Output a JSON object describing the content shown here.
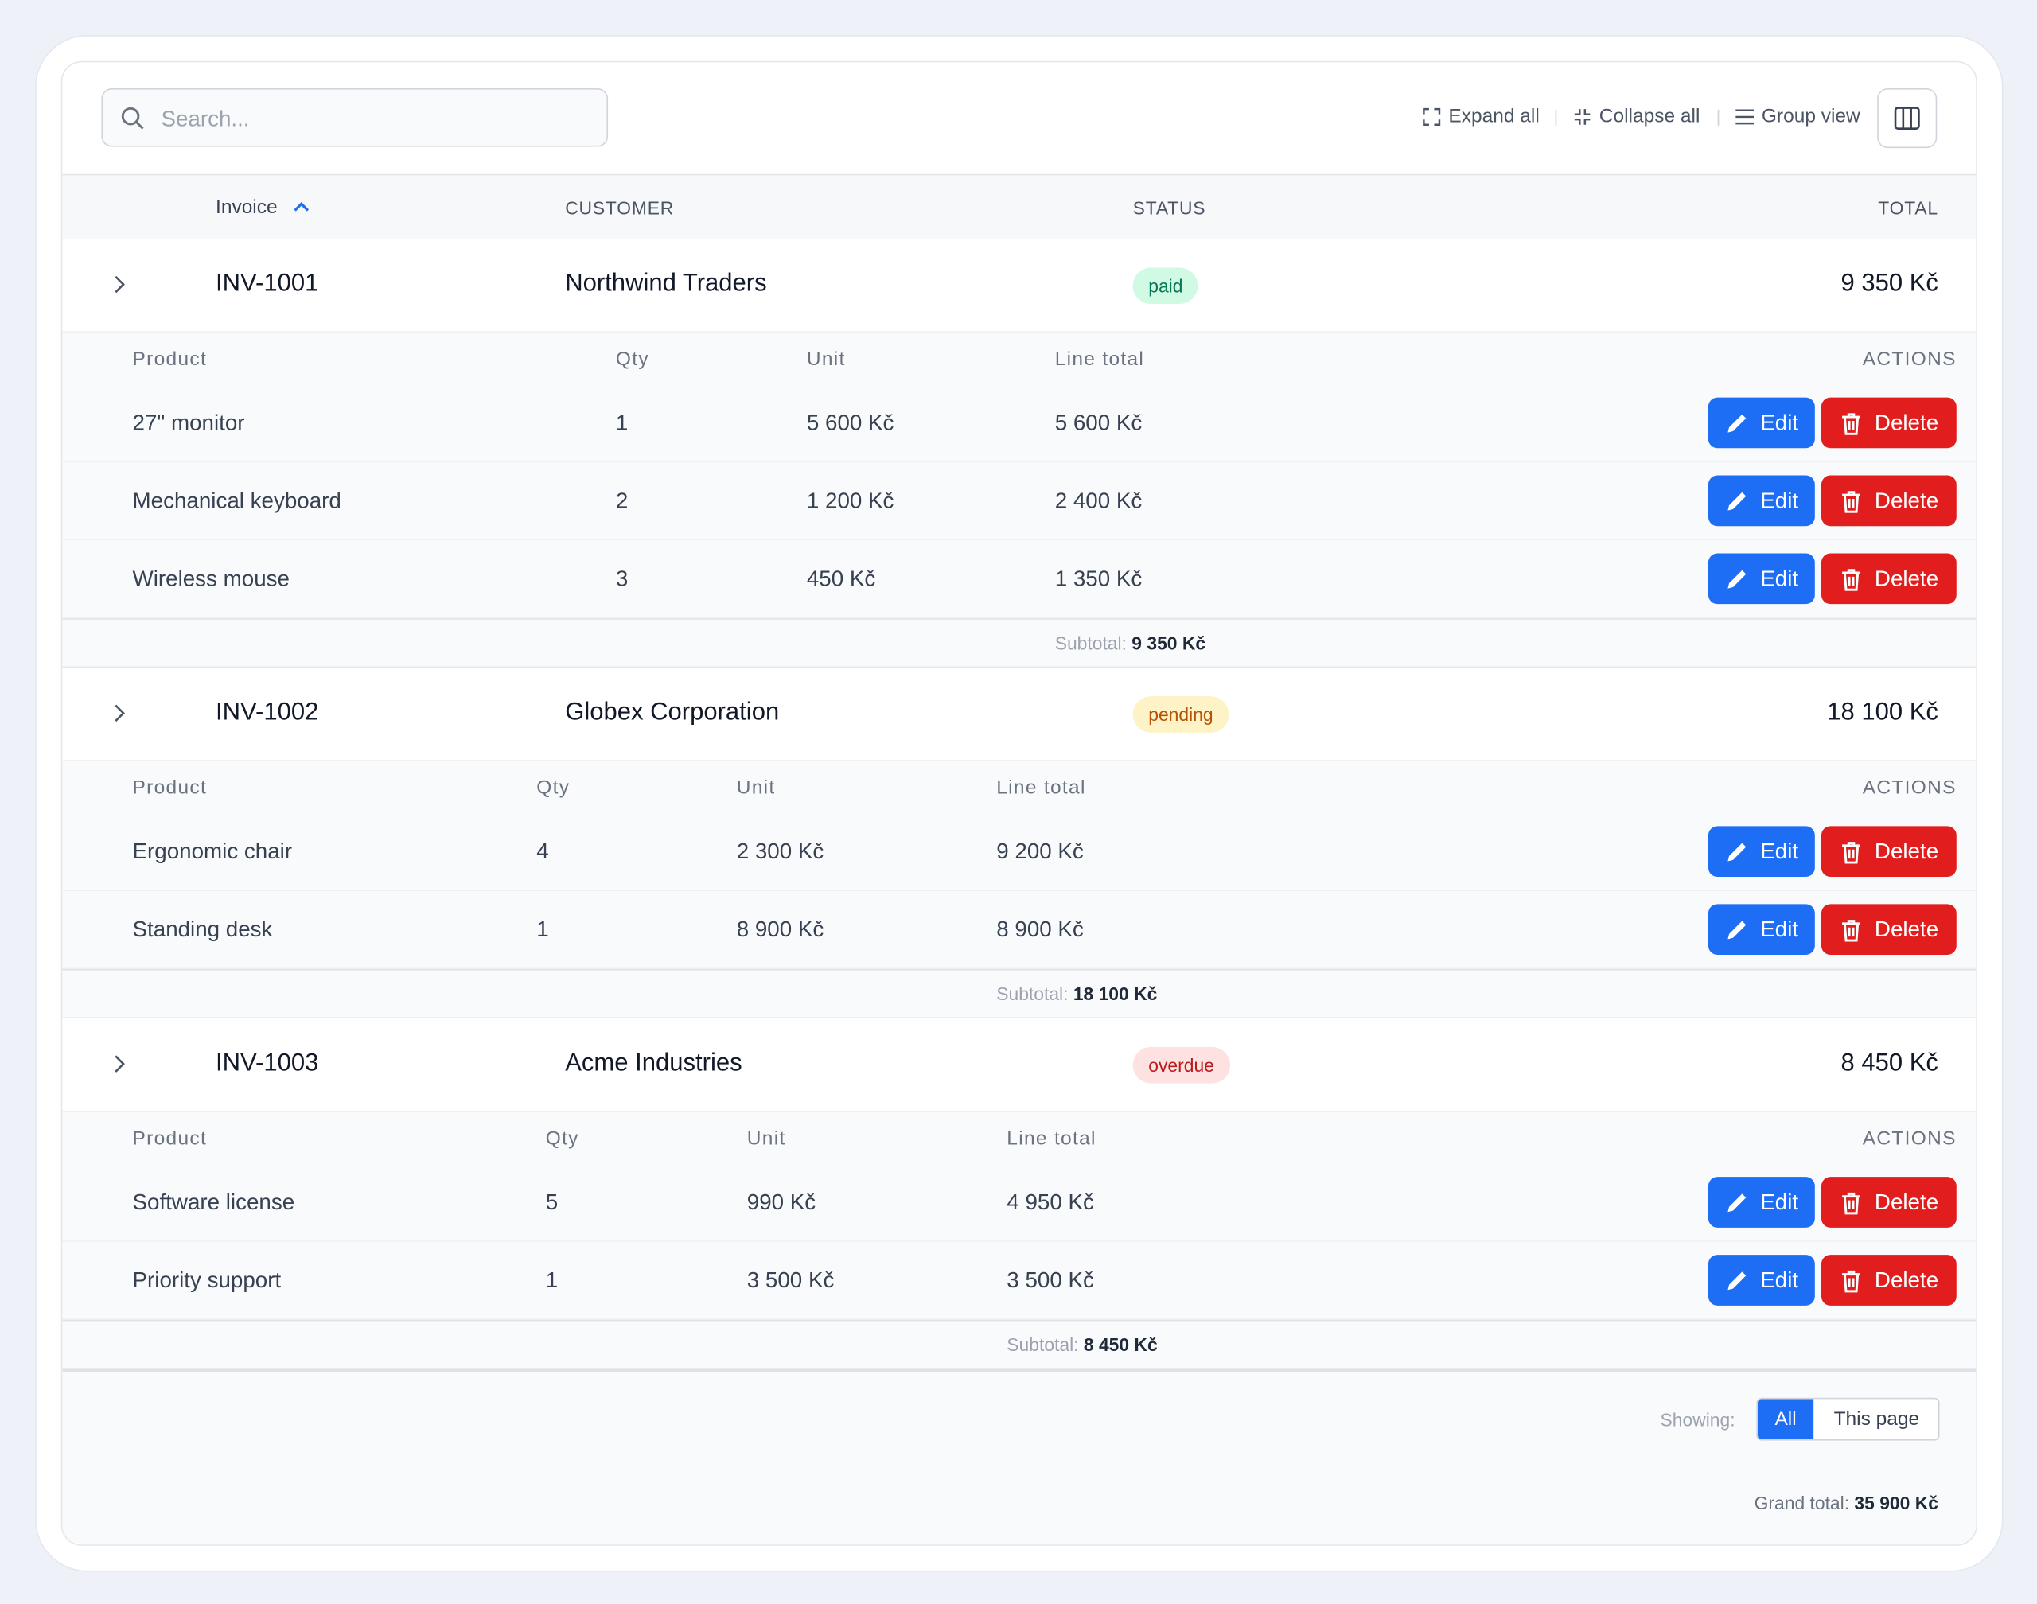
{
  "toolbar": {
    "search_placeholder": "Search...",
    "expand_all": "Expand all",
    "collapse_all": "Collapse all",
    "group_view": "Group view"
  },
  "table": {
    "headers": [
      "Invoice",
      "CUSTOMER",
      "STATUS",
      "TOTAL"
    ],
    "item_headers": [
      "Product",
      "Qty",
      "Unit",
      "Line total",
      "ACTIONS"
    ],
    "subtotal_label": "Subtotal:",
    "groups": [
      {
        "invoice": "INV-1001",
        "customer": "Northwind Traders",
        "status": "paid",
        "total": "9 350 Kč",
        "subtotal": "9 350 Kč",
        "items": [
          [
            "27\" monitor",
            "1",
            "5 600 Kč",
            "5 600 Kč"
          ],
          [
            "Mechanical keyboard",
            "2",
            "1 200 Kč",
            "2 400 Kč"
          ],
          [
            "Wireless mouse",
            "3",
            "450 Kč",
            "1 350 Kč"
          ]
        ]
      },
      {
        "invoice": "INV-1002",
        "customer": "Globex Corporation",
        "status": "pending",
        "total": "18 100 Kč",
        "subtotal": "18 100 Kč",
        "items": [
          [
            "Ergonomic chair",
            "4",
            "2 300 Kč",
            "9 200 Kč"
          ],
          [
            "Standing desk",
            "1",
            "8 900 Kč",
            "8 900 Kč"
          ]
        ]
      },
      {
        "invoice": "INV-1003",
        "customer": "Acme Industries",
        "status": "overdue",
        "total": "8 450 Kč",
        "subtotal": "8 450 Kč",
        "items": [
          [
            "Software license",
            "5",
            "990 Kč",
            "4 950 Kč"
          ],
          [
            "Priority support",
            "1",
            "3 500 Kč",
            "3 500 Kč"
          ]
        ]
      }
    ]
  },
  "buttons": {
    "edit": "Edit",
    "delete": "Delete"
  },
  "footer": {
    "showing_label": "Showing:",
    "options": [
      "All",
      "This page"
    ],
    "grand_total_label": "Grand total:",
    "grand_total": "35 900 Kč"
  }
}
